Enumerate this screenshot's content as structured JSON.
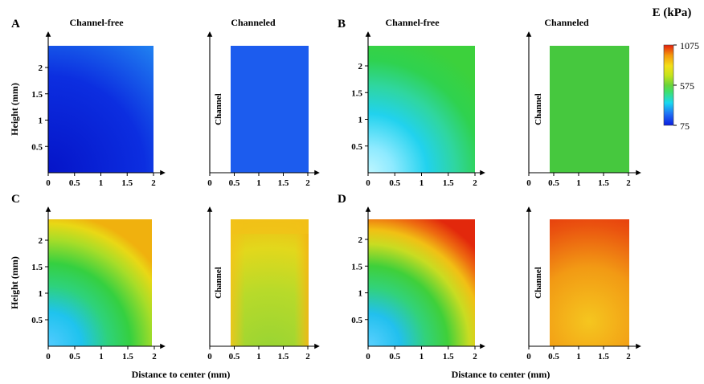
{
  "colorbar": {
    "title": "E (kPa)",
    "tick_labels": [
      "1075",
      "575",
      "75"
    ],
    "colors": [
      "#0b1ee0",
      "#1f6ff5",
      "#19d8f0",
      "#3fe06a",
      "#6ad33a",
      "#c4e31c",
      "#f3df18",
      "#f49a0c",
      "#e51e0c"
    ]
  },
  "axis_titles": {
    "x": "Distance to center (mm)",
    "y": "Height (mm)"
  },
  "chart_data": [
    {
      "type": "heatmap",
      "panel": "A",
      "title": "Channel-free",
      "channel": false,
      "channel_label": "",
      "x_ticks": [
        "0",
        "0.5",
        "1",
        "1.5",
        "2"
      ],
      "y_ticks": [
        "0.5",
        "1",
        "1.5",
        "2"
      ],
      "x_range": [
        0,
        2
      ],
      "y_range": [
        0,
        2.4
      ],
      "value_range_kpa": [
        75,
        1075
      ],
      "color_low_high": [
        "#0618d6",
        "#1b70f0"
      ]
    },
    {
      "type": "heatmap",
      "panel": "",
      "title": "Channeled",
      "channel": true,
      "channel_label": "Channel",
      "x_ticks": [
        "0",
        "0.5",
        "1",
        "1.5",
        "2"
      ],
      "y_ticks": [],
      "x_range": [
        0.4,
        2
      ],
      "y_range": [
        0,
        2.4
      ],
      "value_range_kpa": [
        75,
        1075
      ],
      "color_low_high": [
        "#1c5cee",
        "#1c5cee"
      ]
    },
    {
      "type": "heatmap",
      "panel": "B",
      "title": "Channel-free",
      "channel": false,
      "channel_label": "",
      "x_ticks": [
        "0",
        "0.5",
        "1",
        "1.5",
        "2"
      ],
      "y_ticks": [
        "0.5",
        "1",
        "1.5",
        "2"
      ],
      "x_range": [
        0,
        2
      ],
      "y_range": [
        0,
        2.4
      ],
      "value_range_kpa": [
        75,
        1075
      ],
      "color_low_high": [
        "#a8f2ff",
        "#35cf45"
      ]
    },
    {
      "type": "heatmap",
      "panel": "",
      "title": "Channeled",
      "channel": true,
      "channel_label": "Channel",
      "x_ticks": [
        "0",
        "0.5",
        "1",
        "1.5",
        "2"
      ],
      "y_ticks": [],
      "x_range": [
        0.4,
        2
      ],
      "y_range": [
        0,
        2.4
      ],
      "value_range_kpa": [
        75,
        1075
      ],
      "color_low_high": [
        "#46c83e",
        "#46c83e"
      ]
    },
    {
      "type": "heatmap",
      "panel": "C",
      "title": "",
      "channel": false,
      "channel_label": "",
      "x_ticks": [
        "0",
        "0.5",
        "1",
        "1.5",
        "2"
      ],
      "y_ticks": [
        "0.5",
        "1",
        "1.5",
        "2"
      ],
      "x_range": [
        0,
        2
      ],
      "y_range": [
        0,
        2.4
      ],
      "value_range_kpa": [
        75,
        1075
      ],
      "color_low_high": [
        "#1fc3f2",
        "#f1c60d"
      ]
    },
    {
      "type": "heatmap",
      "panel": "",
      "title": "",
      "channel": true,
      "channel_label": "Channel",
      "x_ticks": [
        "0",
        "0.5",
        "1",
        "1.5",
        "2"
      ],
      "y_ticks": [],
      "x_range": [
        0.4,
        2
      ],
      "y_range": [
        0,
        2.4
      ],
      "value_range_kpa": [
        75,
        1075
      ],
      "color_low_high": [
        "#9fd833",
        "#f0be12"
      ]
    },
    {
      "type": "heatmap",
      "panel": "D",
      "title": "",
      "channel": false,
      "channel_label": "",
      "x_ticks": [
        "0",
        "0.5",
        "1",
        "1.5",
        "2"
      ],
      "y_ticks": [
        "0.5",
        "1",
        "1.5",
        "2"
      ],
      "x_range": [
        0,
        2
      ],
      "y_range": [
        0,
        2.4
      ],
      "value_range_kpa": [
        75,
        1075
      ],
      "color_low_high": [
        "#27b8f5",
        "#e8340c"
      ]
    },
    {
      "type": "heatmap",
      "panel": "",
      "title": "",
      "channel": true,
      "channel_label": "Channel",
      "x_ticks": [
        "0",
        "0.5",
        "1",
        "1.5",
        "2"
      ],
      "y_ticks": [],
      "x_range": [
        0.4,
        2
      ],
      "y_range": [
        0,
        2.4
      ],
      "value_range_kpa": [
        75,
        1075
      ],
      "color_low_high": [
        "#f6c21c",
        "#e9350e"
      ]
    }
  ]
}
